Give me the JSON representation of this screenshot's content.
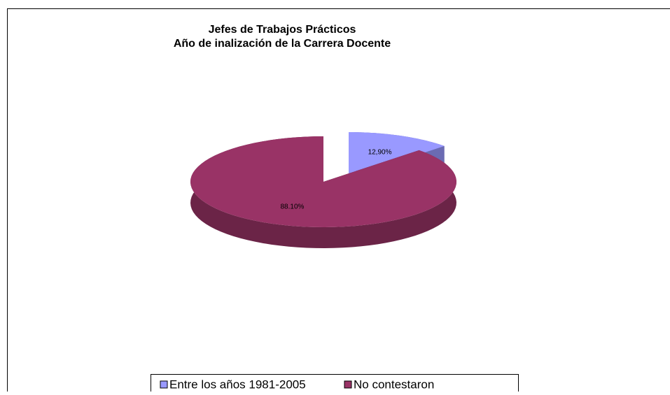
{
  "chart_data": {
    "type": "pie",
    "title": [
      "Jefes de Trabajos Prácticos",
      "Año de inalización de la Carrera Docente"
    ],
    "categories": [
      "Entre los años 1981-2005",
      "No contestaron"
    ],
    "values": [
      12.9,
      88.1
    ],
    "value_labels": [
      "12,90%",
      "88.10%"
    ],
    "colors": [
      "#9999ff",
      "#993366"
    ],
    "legend": "bottom"
  }
}
